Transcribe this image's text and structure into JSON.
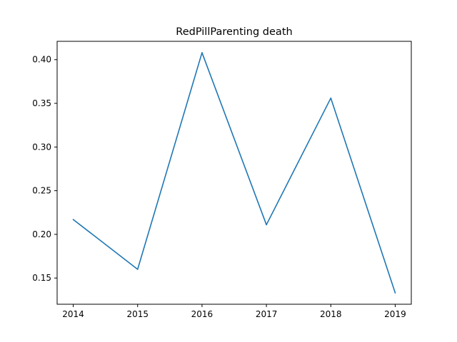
{
  "chart_data": {
    "type": "line",
    "title": "RedPillParenting death",
    "xlabel": "",
    "ylabel": "",
    "x": [
      2014,
      2015,
      2016,
      2017,
      2018,
      2019
    ],
    "series": [
      {
        "values": [
          0.217,
          0.16,
          0.408,
          0.211,
          0.356,
          0.133
        ],
        "color": "#1f77b4"
      }
    ],
    "xlim": [
      2013.75,
      2019.25
    ],
    "ylim": [
      0.12,
      0.421
    ],
    "x_ticks": [
      "2014",
      "2015",
      "2016",
      "2017",
      "2018",
      "2019"
    ],
    "y_ticks": [
      "0.15",
      "0.20",
      "0.25",
      "0.30",
      "0.35",
      "0.40"
    ],
    "grid": false,
    "legend": "none"
  }
}
